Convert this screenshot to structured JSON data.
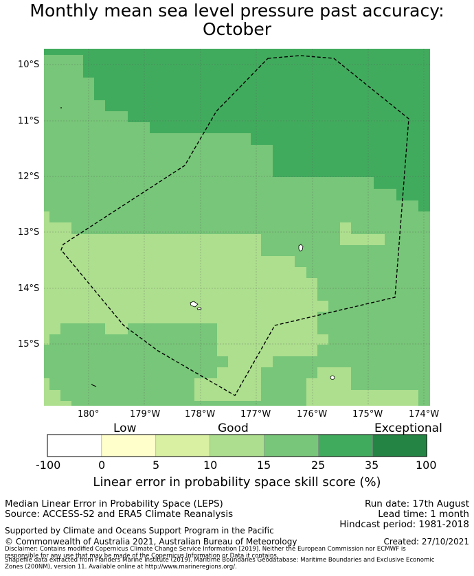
{
  "title": {
    "line1": "Monthly mean sea level pressure past accuracy:",
    "line2": "October"
  },
  "map": {
    "lat_labels": [
      "10°S",
      "11°S",
      "12°S",
      "13°S",
      "14°S",
      "15°S"
    ],
    "lon_labels": [
      "180°",
      "179°W",
      "178°W",
      "177°W",
      "176°W",
      "175°W",
      "174°W"
    ],
    "colors": {
      "c10_15": "#addf8e",
      "c15_25": "#78c679",
      "c25_35": "#41ab5d",
      "land": "#ffffff",
      "grid": "#555555",
      "boundary": "#000000"
    }
  },
  "colorbar": {
    "categories": [
      "Low",
      "Good",
      "Exceptional"
    ],
    "ticks": [
      "-100",
      "0",
      "5",
      "10",
      "15",
      "25",
      "35",
      "100"
    ],
    "colors": [
      "#ffffff",
      "#ffffcc",
      "#d9f0a3",
      "#addd8e",
      "#78c679",
      "#41ab5d",
      "#238443"
    ],
    "label": "Linear error in probability space skill score (%)"
  },
  "info": {
    "method": "Median Linear Error in Probability Space (LEPS)",
    "source": "Source: ACCESS-S2 and ERA5 Climate Reanalysis",
    "support": "Supported by Climate and Oceans Support Program in the Pacific",
    "copyright": "© Commonwealth of Australia 2021, Australian Bureau of Meteorology",
    "run_date": "Run date: 17th August",
    "lead_time": "Lead time: 1 month",
    "hindcast": "Hindcast period: 1981-2018",
    "created": "Created: 27/10/2021",
    "disclaimer1": "Disclaimer: Contains modified Copernicus Climate Change Service Information [2019]. Neither the European Commission nor ECMWF is",
    "disclaimer2": "responsible for any use that may be made of the Copernicus Information or Data it contains.",
    "disclaimer3": "Shapefile data extracted from Flanders Marine Institute (2019). Maritime Boundaries Geodatabase: Maritime Boundaries and Exclusive Economic",
    "disclaimer4": "Zones (200NM), version 11. Available online at http://www.marineregions.org/."
  }
}
